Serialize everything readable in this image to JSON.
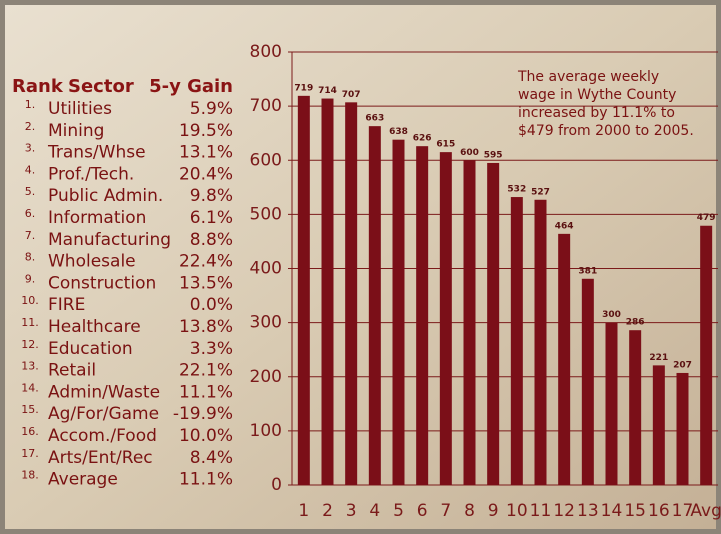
{
  "chart_data": {
    "type": "bar",
    "categories": [
      "1",
      "2",
      "3",
      "4",
      "5",
      "6",
      "7",
      "8",
      "9",
      "10",
      "11",
      "12",
      "13",
      "14",
      "15",
      "16",
      "17",
      "Avg"
    ],
    "values": [
      719,
      714,
      707,
      663,
      638,
      626,
      615,
      600,
      595,
      532,
      527,
      464,
      381,
      300,
      286,
      221,
      207,
      479
    ],
    "color": "#7b0f18",
    "ylim": [
      0,
      800
    ],
    "yticks": [
      0,
      100,
      200,
      300,
      400,
      500,
      600,
      700,
      800
    ],
    "grid": true,
    "annotation": [
      "The average weekly",
      "wage in Wythe County",
      "increased by 11.1% to",
      "$479 from 2000 to 2005."
    ]
  },
  "table": {
    "header": [
      "Rank",
      "Sector",
      "5-y Gain"
    ],
    "rows": [
      [
        "1.",
        "Utilities",
        "5.9%"
      ],
      [
        "2.",
        "Mining",
        "19.5%"
      ],
      [
        "3.",
        "Trans/Whse",
        "13.1%"
      ],
      [
        "4.",
        "Prof./Tech.",
        "20.4%"
      ],
      [
        "5.",
        "Public Admin.",
        "9.8%"
      ],
      [
        "6.",
        "Information",
        "6.1%"
      ],
      [
        "7.",
        "Manufacturing",
        "8.8%"
      ],
      [
        "8.",
        "Wholesale",
        "22.4%"
      ],
      [
        "9.",
        "Construction",
        "13.5%"
      ],
      [
        "10.",
        "FIRE",
        "0.0%"
      ],
      [
        "11.",
        "Healthcare",
        "13.8%"
      ],
      [
        "12.",
        "Education",
        "3.3%"
      ],
      [
        "13.",
        "Retail",
        "22.1%"
      ],
      [
        "14.",
        "Admin/Waste",
        "11.1%"
      ],
      [
        "15.",
        "Ag/For/Game",
        "-19.9%"
      ],
      [
        "16.",
        "Accom./Food",
        "10.0%"
      ],
      [
        "17.",
        "Arts/Ent/Rec",
        "8.4%"
      ],
      [
        "18.",
        "Average",
        "11.1%"
      ]
    ]
  }
}
